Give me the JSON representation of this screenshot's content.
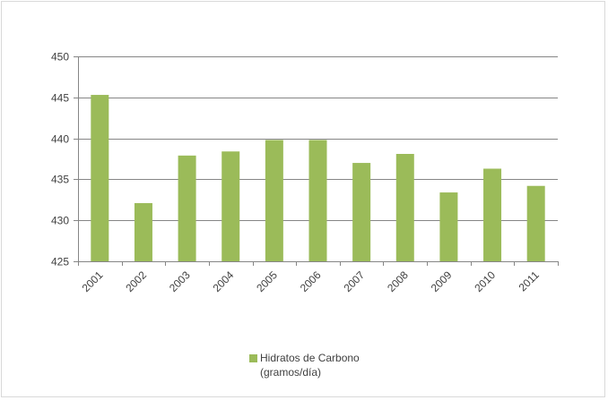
{
  "chart_data": {
    "type": "bar",
    "categories": [
      "2001",
      "2002",
      "2003",
      "2004",
      "2005",
      "2006",
      "2007",
      "2008",
      "2009",
      "2010",
      "2011"
    ],
    "series": [
      {
        "name": "Hidratos de Carbono\n(gramos/día)",
        "values": [
          445.3,
          432.1,
          437.9,
          438.4,
          439.8,
          439.8,
          437.0,
          438.1,
          433.4,
          436.3,
          434.2
        ]
      }
    ],
    "title": "",
    "xlabel": "",
    "ylabel": "",
    "ylim": [
      425,
      450
    ],
    "yticks": [
      425,
      430,
      435,
      440,
      445,
      450
    ],
    "grid": true,
    "legend_position": "bottom",
    "colors": {
      "bar": "#9bbb59",
      "grid": "#868686",
      "text": "#404040"
    }
  }
}
